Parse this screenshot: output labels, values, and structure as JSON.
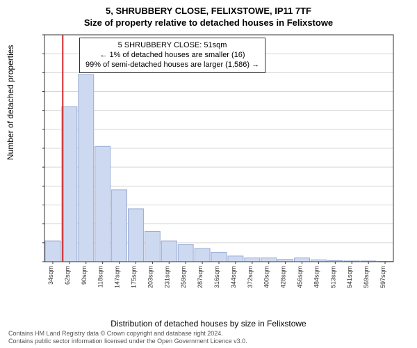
{
  "titles": {
    "main": "5, SHRUBBERY CLOSE, FELIXSTOWE, IP11 7TF",
    "sub": "Size of property relative to detached houses in Felixstowe"
  },
  "axes": {
    "y_label": "Number of detached properties",
    "x_label": "Distribution of detached houses by size in Felixstowe"
  },
  "chart": {
    "type": "histogram",
    "categories": [
      "34sqm",
      "62sqm",
      "90sqm",
      "118sqm",
      "147sqm",
      "175sqm",
      "203sqm",
      "231sqm",
      "259sqm",
      "287sqm",
      "316sqm",
      "344sqm",
      "372sqm",
      "400sqm",
      "428sqm",
      "456sqm",
      "484sqm",
      "513sqm",
      "541sqm",
      "569sqm",
      "597sqm"
    ],
    "values": [
      55,
      410,
      495,
      305,
      190,
      140,
      80,
      55,
      45,
      35,
      25,
      15,
      10,
      10,
      6,
      10,
      5,
      3,
      2,
      2,
      1
    ],
    "ylim": [
      0,
      600
    ],
    "ytick_step": 50,
    "bar_fill": "#cdd9f0",
    "bar_stroke": "#9aabd4",
    "grid_color": "#d7d7d7",
    "axis_color": "#333333",
    "marker_line_color": "#d62728",
    "marker_line_x_index": 0.6,
    "background_color": "#ffffff"
  },
  "annotation": {
    "line1": "5 SHRUBBERY CLOSE: 51sqm",
    "line2": "← 1% of detached houses are smaller (16)",
    "line3": "99% of semi-detached houses are larger (1,586) →"
  },
  "footer": {
    "line1": "Contains HM Land Registry data © Crown copyright and database right 2024.",
    "line2": "Contains public sector information licensed under the Open Government Licence v3.0."
  }
}
